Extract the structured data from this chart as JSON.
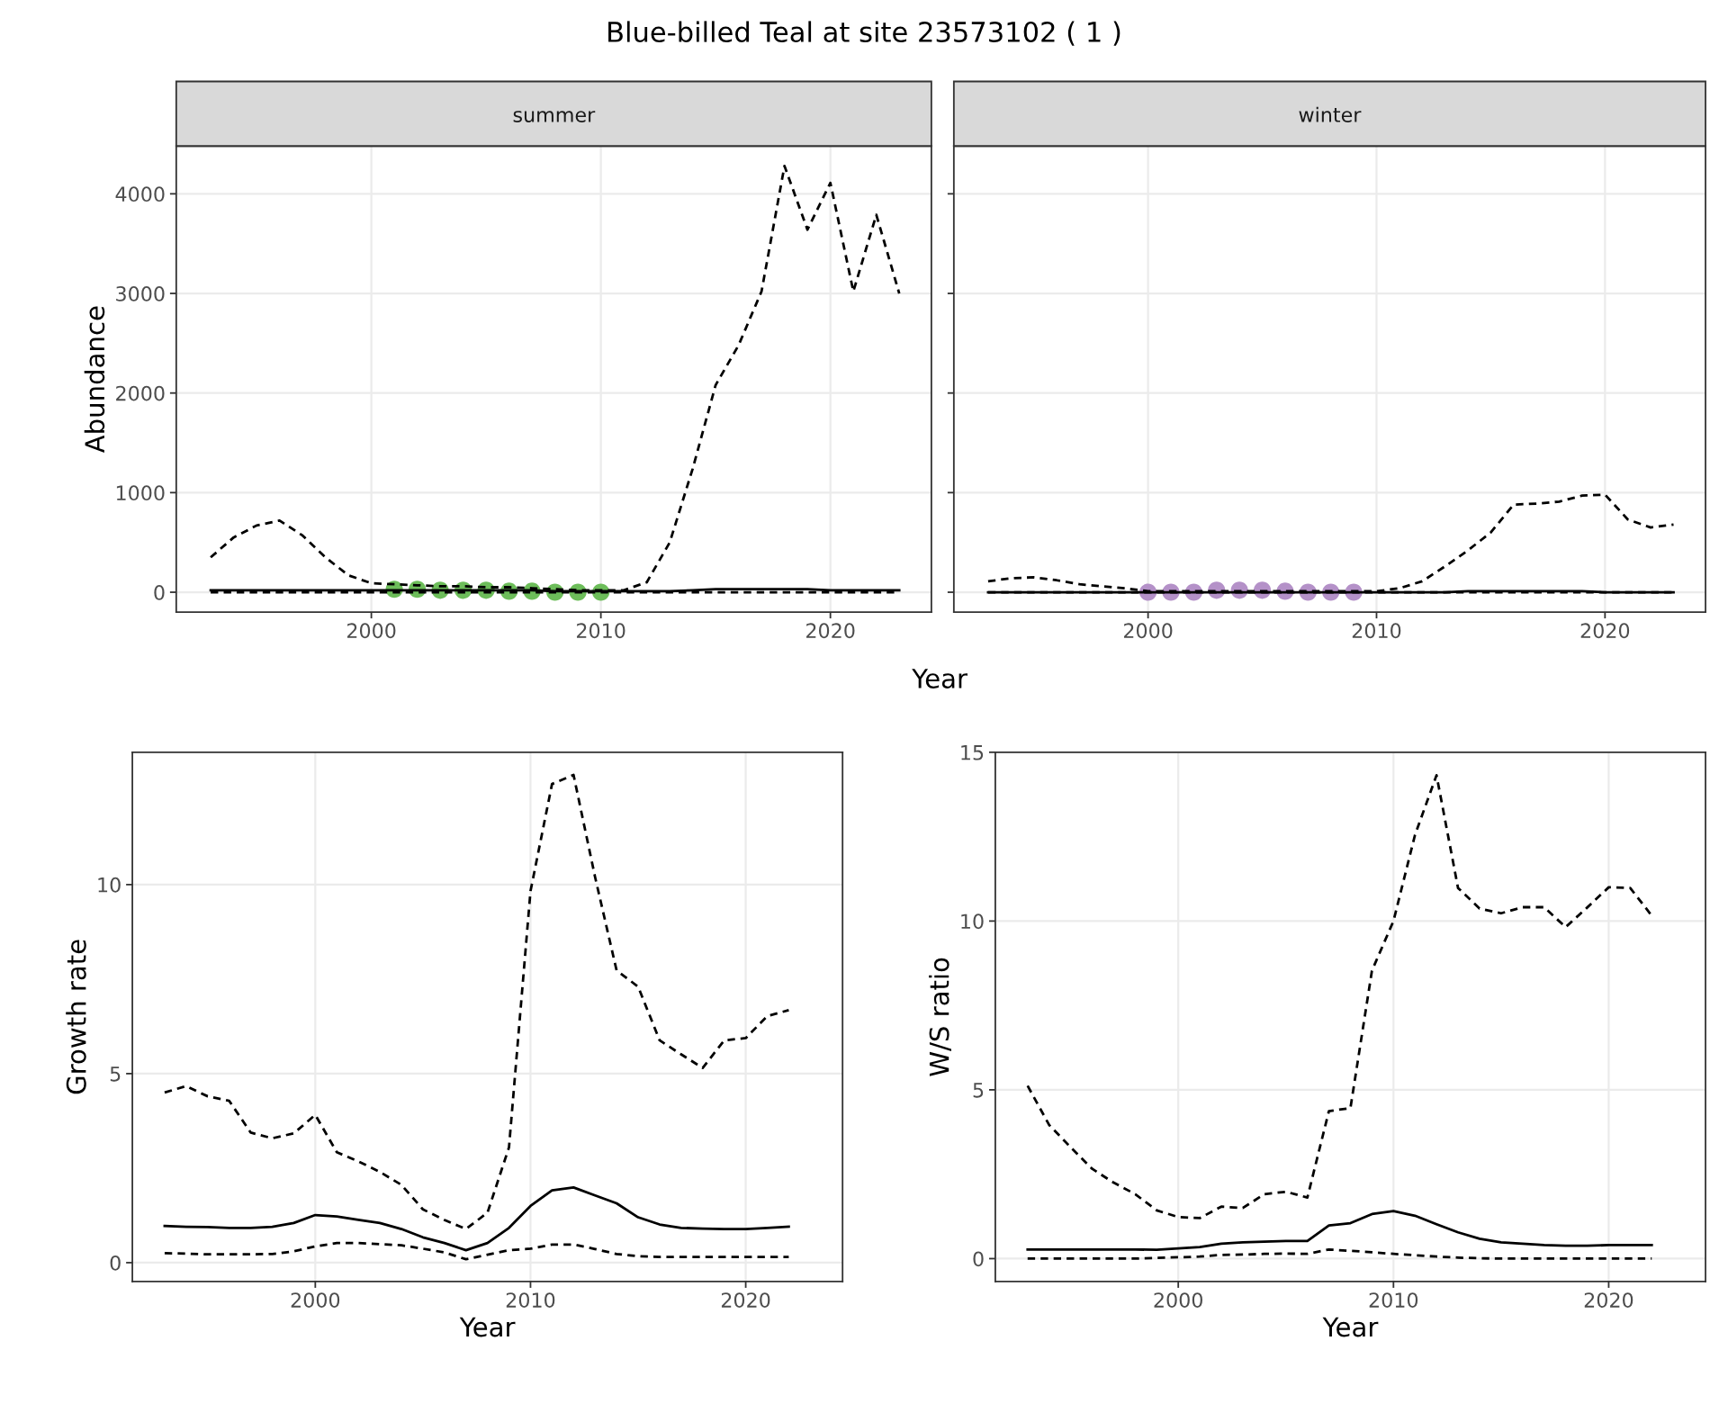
{
  "chart_data": [
    {
      "type": "line",
      "title": "Blue-billed Teal at site 23573102 ( 1 )",
      "subtitle": "summer",
      "xlabel": "Year",
      "ylabel": "Abundance",
      "xlim": [
        1991.5,
        2024.4
      ],
      "ylim": [
        -200,
        4480
      ],
      "xticks": [
        2000,
        2010,
        2020
      ],
      "yticks": [
        0,
        1000,
        2000,
        3000,
        4000
      ],
      "grid": true,
      "x": [
        1993,
        1994,
        1995,
        1996,
        1997,
        1998,
        1999,
        2000,
        2001,
        2002,
        2003,
        2004,
        2005,
        2006,
        2007,
        2008,
        2009,
        2010,
        2011,
        2012,
        2013,
        2014,
        2015,
        2016,
        2017,
        2018,
        2019,
        2020,
        2021,
        2022,
        2023
      ],
      "series": [
        {
          "color": "#000000",
          "line_style": "dashed",
          "values": [
            350,
            550,
            670,
            720,
            570,
            350,
            170,
            90,
            80,
            70,
            60,
            60,
            50,
            50,
            40,
            30,
            20,
            20,
            20,
            100,
            500,
            1240,
            2080,
            2480,
            3020,
            4280,
            3640,
            4110,
            3020,
            3790,
            3000
          ]
        },
        {
          "color": "#000000",
          "line_style": "dashed",
          "values": [
            0,
            0,
            0,
            0,
            0,
            0,
            0,
            0,
            0,
            0,
            0,
            0,
            0,
            0,
            0,
            0,
            0,
            0,
            0,
            0,
            0,
            0,
            0,
            0,
            0,
            0,
            0,
            0,
            0,
            0,
            0
          ]
        },
        {
          "color": "#000000",
          "line_style": "solid",
          "values": [
            20,
            20,
            20,
            20,
            20,
            20,
            20,
            20,
            20,
            20,
            20,
            20,
            20,
            20,
            20,
            10,
            10,
            10,
            10,
            10,
            10,
            20,
            30,
            30,
            30,
            30,
            30,
            20,
            20,
            20,
            20
          ]
        },
        {
          "type": "scatter",
          "color": "#6dbd5a",
          "marker": "circle",
          "x": [
            2001,
            2002,
            2003,
            2004,
            2005,
            2006,
            2007,
            2008,
            2009,
            2010
          ],
          "values": [
            30,
            30,
            20,
            20,
            20,
            10,
            10,
            0,
            0,
            0
          ]
        }
      ]
    },
    {
      "type": "line",
      "subtitle": "winter",
      "xlim": [
        1991.5,
        2024.4
      ],
      "ylim": [
        -200,
        4480
      ],
      "xticks": [
        2000,
        2010,
        2020
      ],
      "yticks": [
        0,
        1000,
        2000,
        3000,
        4000
      ],
      "grid": true,
      "tick_labels": "x",
      "x": [
        1993,
        1994,
        1995,
        1996,
        1997,
        1998,
        1999,
        2000,
        2001,
        2002,
        2003,
        2004,
        2005,
        2006,
        2007,
        2008,
        2009,
        2010,
        2011,
        2012,
        2013,
        2014,
        2015,
        2016,
        2017,
        2018,
        2019,
        2020,
        2021,
        2022,
        2023
      ],
      "series": [
        {
          "color": "#000000",
          "line_style": "dashed",
          "values": [
            110,
            140,
            150,
            120,
            80,
            60,
            40,
            10,
            10,
            10,
            10,
            10,
            10,
            10,
            10,
            10,
            10,
            10,
            40,
            110,
            260,
            420,
            600,
            880,
            890,
            910,
            970,
            980,
            730,
            650,
            680
          ]
        },
        {
          "color": "#000000",
          "line_style": "dashed",
          "values": [
            0,
            0,
            0,
            0,
            0,
            0,
            0,
            0,
            0,
            0,
            0,
            0,
            0,
            0,
            0,
            0,
            0,
            0,
            0,
            0,
            0,
            0,
            0,
            0,
            0,
            0,
            0,
            0,
            0,
            0,
            0
          ]
        },
        {
          "color": "#000000",
          "line_style": "solid",
          "values": [
            0,
            0,
            0,
            0,
            0,
            0,
            0,
            0,
            0,
            0,
            0,
            0,
            0,
            0,
            0,
            0,
            0,
            0,
            0,
            0,
            0,
            10,
            10,
            10,
            10,
            10,
            10,
            0,
            0,
            0,
            0
          ]
        },
        {
          "type": "scatter",
          "color": "#b491c8",
          "marker": "circle",
          "x": [
            2000,
            2001,
            2002,
            2003,
            2004,
            2005,
            2006,
            2007,
            2008,
            2009
          ],
          "values": [
            0,
            0,
            0,
            20,
            20,
            20,
            10,
            0,
            0,
            0
          ]
        }
      ]
    },
    {
      "type": "line",
      "xlabel": "Year",
      "ylabel": "Growth rate",
      "xlim": [
        1991.5,
        2024.5
      ],
      "ylim": [
        -0.5,
        13.5
      ],
      "xticks": [
        2000,
        2010,
        2020
      ],
      "yticks": [
        0,
        5,
        10
      ],
      "grid": true,
      "x": [
        1993,
        1994,
        1995,
        1996,
        1997,
        1998,
        1999,
        2000,
        2001,
        2002,
        2003,
        2004,
        2005,
        2006,
        2007,
        2008,
        2009,
        2010,
        2011,
        2012,
        2013,
        2014,
        2015,
        2016,
        2017,
        2018,
        2019,
        2020,
        2021,
        2022
      ],
      "series": [
        {
          "color": "#000000",
          "line_style": "dashed",
          "values": [
            4.5,
            4.67,
            4.4,
            4.28,
            3.44,
            3.29,
            3.42,
            3.91,
            2.92,
            2.68,
            2.4,
            2.06,
            1.41,
            1.13,
            0.89,
            1.32,
            3.05,
            9.83,
            12.66,
            12.9,
            10.2,
            7.73,
            7.3,
            5.88,
            5.51,
            5.15,
            5.88,
            5.94,
            6.52,
            6.68
          ]
        },
        {
          "color": "#000000",
          "line_style": "solid",
          "values": [
            0.97,
            0.95,
            0.94,
            0.92,
            0.92,
            0.95,
            1.05,
            1.26,
            1.22,
            1.13,
            1.05,
            0.89,
            0.67,
            0.52,
            0.33,
            0.52,
            0.92,
            1.5,
            1.91,
            1.99,
            1.78,
            1.57,
            1.2,
            1.01,
            0.92,
            0.9,
            0.89,
            0.89,
            0.92,
            0.95
          ]
        },
        {
          "color": "#000000",
          "line_style": "dashed",
          "values": [
            0.25,
            0.24,
            0.22,
            0.22,
            0.22,
            0.23,
            0.3,
            0.43,
            0.52,
            0.52,
            0.49,
            0.46,
            0.37,
            0.27,
            0.09,
            0.21,
            0.33,
            0.37,
            0.48,
            0.48,
            0.36,
            0.23,
            0.17,
            0.15,
            0.15,
            0.15,
            0.15,
            0.15,
            0.15,
            0.15
          ]
        }
      ]
    },
    {
      "type": "line",
      "xlabel": "Year",
      "ylabel": "W/S ratio",
      "xlim": [
        1991.5,
        2024.5
      ],
      "ylim": [
        -0.68,
        15
      ],
      "xticks": [
        2000,
        2010,
        2020
      ],
      "yticks": [
        0,
        5,
        10,
        15
      ],
      "grid": true,
      "x": [
        1993,
        1994,
        1995,
        1996,
        1997,
        1998,
        1999,
        2000,
        2001,
        2002,
        2003,
        2004,
        2005,
        2006,
        2007,
        2008,
        2009,
        2010,
        2011,
        2012,
        2013,
        2014,
        2015,
        2016,
        2017,
        2018,
        2019,
        2020,
        2021,
        2022
      ],
      "series": [
        {
          "color": "#000000",
          "line_style": "dashed",
          "values": [
            5.12,
            3.96,
            3.3,
            2.66,
            2.25,
            1.91,
            1.43,
            1.23,
            1.2,
            1.54,
            1.5,
            1.91,
            1.98,
            1.81,
            4.37,
            4.46,
            8.53,
            10.0,
            12.55,
            14.32,
            10.98,
            10.37,
            10.23,
            10.41,
            10.41,
            9.82,
            10.4,
            11.0,
            10.98,
            10.16
          ]
        },
        {
          "color": "#000000",
          "line_style": "solid",
          "values": [
            0.27,
            0.27,
            0.27,
            0.27,
            0.27,
            0.27,
            0.26,
            0.3,
            0.34,
            0.44,
            0.48,
            0.5,
            0.52,
            0.52,
            0.98,
            1.05,
            1.32,
            1.41,
            1.27,
            1.02,
            0.78,
            0.59,
            0.48,
            0.44,
            0.4,
            0.38,
            0.38,
            0.4,
            0.4,
            0.4
          ]
        },
        {
          "color": "#000000",
          "line_style": "dashed",
          "values": [
            0,
            0,
            0,
            0,
            0,
            0,
            0.02,
            0.04,
            0.06,
            0.11,
            0.12,
            0.14,
            0.15,
            0.14,
            0.27,
            0.23,
            0.19,
            0.14,
            0.1,
            0.06,
            0.03,
            0.01,
            0,
            0,
            0,
            0,
            0,
            0,
            0,
            0
          ]
        }
      ]
    }
  ]
}
